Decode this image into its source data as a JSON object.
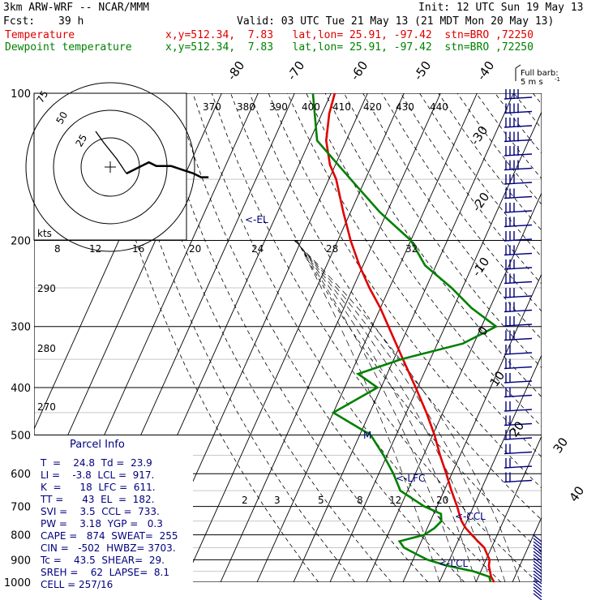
{
  "header": {
    "model": "3km ARW-WRF -- NCAR/MMM",
    "init": "Init: 12 UTC Sun 19 May 13",
    "fcst_label": "Fcst:",
    "fcst_value": "39 h",
    "valid": "Valid: 03 UTC Tue 21 May 13 (21 MDT Mon 20 May 13)",
    "temp_label": "Temperature",
    "temp_info": "x,y=512.34,  7.83   lat,lon= 25.91, -97.42  stn=BRO ,72250",
    "dew_label": "Dewpoint temperature",
    "dew_info": "x,y=512.34,  7.83   lat,lon= 25.91, -97.42  stn=BRO ,72250"
  },
  "colors": {
    "temperature": "#e00000",
    "dewpoint": "#008000",
    "barbs": "#00007f",
    "parcel_text": "#00007f",
    "hodograph": "#000000"
  },
  "barb_key": {
    "line1": "Full barb:",
    "line2": "5 m s",
    "exp": "-1"
  },
  "pressure_labels": [
    "100",
    "200",
    "300",
    "400",
    "500",
    "600",
    "700",
    "800",
    "900",
    "1000"
  ],
  "isotherm_top_labels": [
    "-80",
    "-70",
    "-60",
    "-50",
    "-40"
  ],
  "isotherm_right_labels": [
    "-30",
    "-20",
    "-10",
    "0",
    "10",
    "20",
    "30",
    "40"
  ],
  "theta_labels": [
    "370",
    "380",
    "390",
    "400",
    "410",
    "420",
    "430",
    "440"
  ],
  "theta_left_labels": [
    "290",
    "280",
    "270"
  ],
  "mixing_ratio_labels": [
    "2",
    "3",
    "5",
    "8",
    "12",
    "20"
  ],
  "hodo": {
    "kts_label": "kts",
    "ring_labels": [
      "25",
      "50",
      "75"
    ],
    "speed_labels": [
      "8",
      "12",
      "16",
      "20",
      "24",
      "28",
      "32"
    ]
  },
  "annotations": {
    "el": "<-EL",
    "lfc": "<-LFC",
    "ccl": "<-CCL",
    "lcl": "<-LCL",
    "m": "M"
  },
  "parcel_info": {
    "title": "Parcel Info",
    "rows": [
      "T  =    24.8  Td =  23.9",
      "LI =    -3.8  LCL =  917.",
      "K  =      18  LFC =  611.",
      "TT =      43  EL  =  182.",
      "SVI =    3.5  CCL =  733.",
      "PW =    3.18  YGP =   0.3",
      "CAPE =   874  SWEAT=  255",
      "CIN =   -502  HWBZ= 3703.",
      "Tc =    43.5  SHEAR=  29.",
      "SREH =    62  LAPSE=  8.1",
      "CELL = 257/16"
    ]
  },
  "chart_data": {
    "type": "line",
    "title": "",
    "y_axis": "Pressure (hPa), log scale",
    "ylim": [
      1000,
      100
    ],
    "series": [
      {
        "name": "Temperature",
        "p": [
          1000,
          975,
          950,
          925,
          900,
          875,
          850,
          825,
          800,
          775,
          750,
          725,
          700,
          650,
          600,
          550,
          500,
          450,
          400,
          350,
          300,
          275,
          250,
          225,
          200,
          175,
          150,
          140,
          125,
          110,
          100
        ],
        "temp": [
          25.0,
          23.5,
          22.5,
          21.5,
          21.0,
          19.5,
          18.0,
          15.5,
          13.0,
          10.5,
          8.5,
          7.0,
          5.5,
          2.0,
          -1.5,
          -5.5,
          -9.5,
          -14.5,
          -20.5,
          -27.5,
          -35.5,
          -40.0,
          -45.5,
          -51.0,
          -56.5,
          -62.0,
          -68.0,
          -71.5,
          -75.5,
          -78.0,
          -79.0
        ]
      },
      {
        "name": "Dewpoint temperature",
        "p": [
          1000,
          975,
          950,
          925,
          900,
          875,
          850,
          825,
          800,
          775,
          750,
          725,
          700,
          650,
          600,
          550,
          500,
          450,
          400,
          375,
          350,
          325,
          300,
          275,
          250,
          225,
          200,
          175,
          150,
          125,
          100
        ],
        "temp": [
          24.0,
          23.0,
          18.0,
          10.0,
          4.0,
          0.0,
          -4.0,
          -6.0,
          0.0,
          2.0,
          3.0,
          2.0,
          -3.5,
          -12.0,
          -16.0,
          -21.0,
          -27.0,
          -40.0,
          -31.0,
          -38.0,
          -28.0,
          -13.0,
          -6.0,
          -15.0,
          -23.0,
          -33.0,
          -40.0,
          -52.0,
          -64.0,
          -78.0,
          -85.0
        ]
      }
    ],
    "hodograph_points_u_v_kts": [
      [
        0,
        0
      ],
      [
        4,
        -2
      ],
      [
        6,
        -3
      ],
      [
        8,
        -2
      ],
      [
        12,
        -2
      ],
      [
        15,
        -1
      ],
      [
        18,
        0
      ],
      [
        20,
        1
      ],
      [
        22,
        1
      ]
    ],
    "hodograph_upper_points_u_v_kts": [
      [
        0,
        -1
      ],
      [
        -3,
        2
      ],
      [
        -5,
        4
      ],
      [
        -6,
        6
      ],
      [
        -5,
        7
      ]
    ]
  }
}
